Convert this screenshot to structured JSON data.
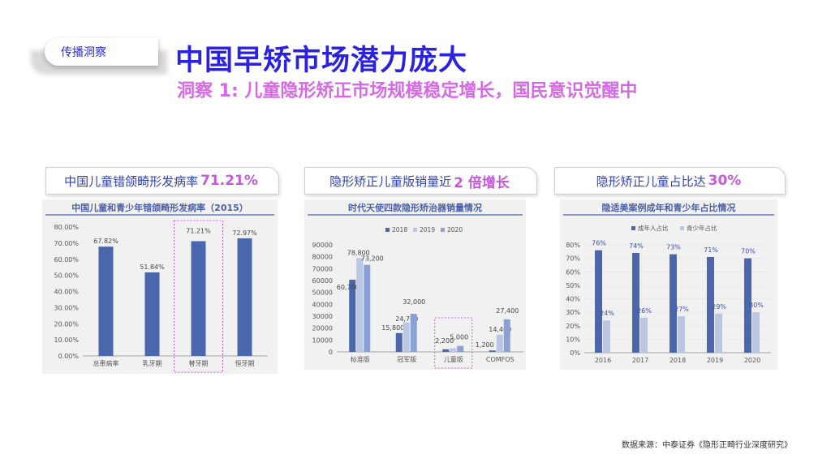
{
  "tag": "传播洞察",
  "title": "中国早矫市场潜力庞大",
  "subtitle": "洞察 1: 儿童隐形矫正市场规模稳定增长，国民意识觉醒中",
  "headlines": [
    {
      "prefix": "中国儿童错颌畸形发病率",
      "highlight": "71.21%",
      "suffix": ""
    },
    {
      "prefix": "隐形矫正儿童版销量近",
      "highlight": "2 倍增长",
      "suffix": ""
    },
    {
      "prefix": "隐形矫正儿童占比达",
      "highlight": "30%",
      "suffix": ""
    }
  ],
  "source": "数据来源：中泰证券《隐形正畸行业深度研究》",
  "colors": {
    "dark": "#4a66ad",
    "mid": "#8aa1d4",
    "light": "#b9c6e6",
    "highlight_box": "#d45ad9"
  },
  "chart_data": [
    {
      "type": "bar",
      "title": "中国儿童和青少年错颌畸形发病率（2015）",
      "categories": [
        "总患病率",
        "乳牙期",
        "替牙期",
        "恒牙期"
      ],
      "values": [
        67.82,
        51.84,
        71.21,
        72.97
      ],
      "value_labels": [
        "67.82%",
        "51.84%",
        "71.21%",
        "72.97%"
      ],
      "yticks": [
        "0.00%",
        "10.00%",
        "20.00%",
        "30.00%",
        "40.00%",
        "50.00%",
        "60.00%",
        "70.00%",
        "80.00%"
      ],
      "ylim": [
        0,
        80
      ],
      "highlight_category": "替牙期"
    },
    {
      "type": "bar",
      "title": "时代天使四款隐形矫治器销量情况",
      "categories": [
        "标准版",
        "冠军版",
        "儿童版",
        "COMFOS"
      ],
      "series": [
        {
          "name": "2018",
          "values": [
            60700,
            15800,
            2200,
            1200
          ],
          "labels": [
            "60,700",
            "15,800",
            "2,200",
            "1,200"
          ]
        },
        {
          "name": "2019",
          "values": [
            78800,
            24700,
            3000,
            14400
          ],
          "labels": [
            "78,800",
            "24,700",
            "",
            "14,400"
          ]
        },
        {
          "name": "2020",
          "values": [
            73200,
            32000,
            5000,
            27400
          ],
          "labels": [
            "73,200",
            "32,000",
            "5,000",
            "27,400"
          ]
        }
      ],
      "yticks": [
        "0",
        "10000",
        "20000",
        "30000",
        "40000",
        "50000",
        "60000",
        "70000",
        "80000",
        "90000"
      ],
      "ylim": [
        0,
        90000
      ],
      "highlight_category": "儿童版"
    },
    {
      "type": "bar",
      "title": "隐适美案例成年和青少年占比情况",
      "categories": [
        "2016",
        "2017",
        "2018",
        "2019",
        "2020"
      ],
      "series": [
        {
          "name": "成年人占比",
          "values": [
            76,
            74,
            73,
            71,
            70
          ],
          "labels": [
            "76%",
            "74%",
            "73%",
            "71%",
            "70%"
          ]
        },
        {
          "name": "青少年占比",
          "values": [
            24,
            26,
            27,
            29,
            30
          ],
          "labels": [
            "24%",
            "26%",
            "27%",
            "29%",
            "30%"
          ]
        }
      ],
      "yticks": [
        "0%",
        "10%",
        "20%",
        "30%",
        "40%",
        "50%",
        "60%",
        "70%",
        "80%"
      ],
      "ylim": [
        0,
        80
      ]
    }
  ]
}
